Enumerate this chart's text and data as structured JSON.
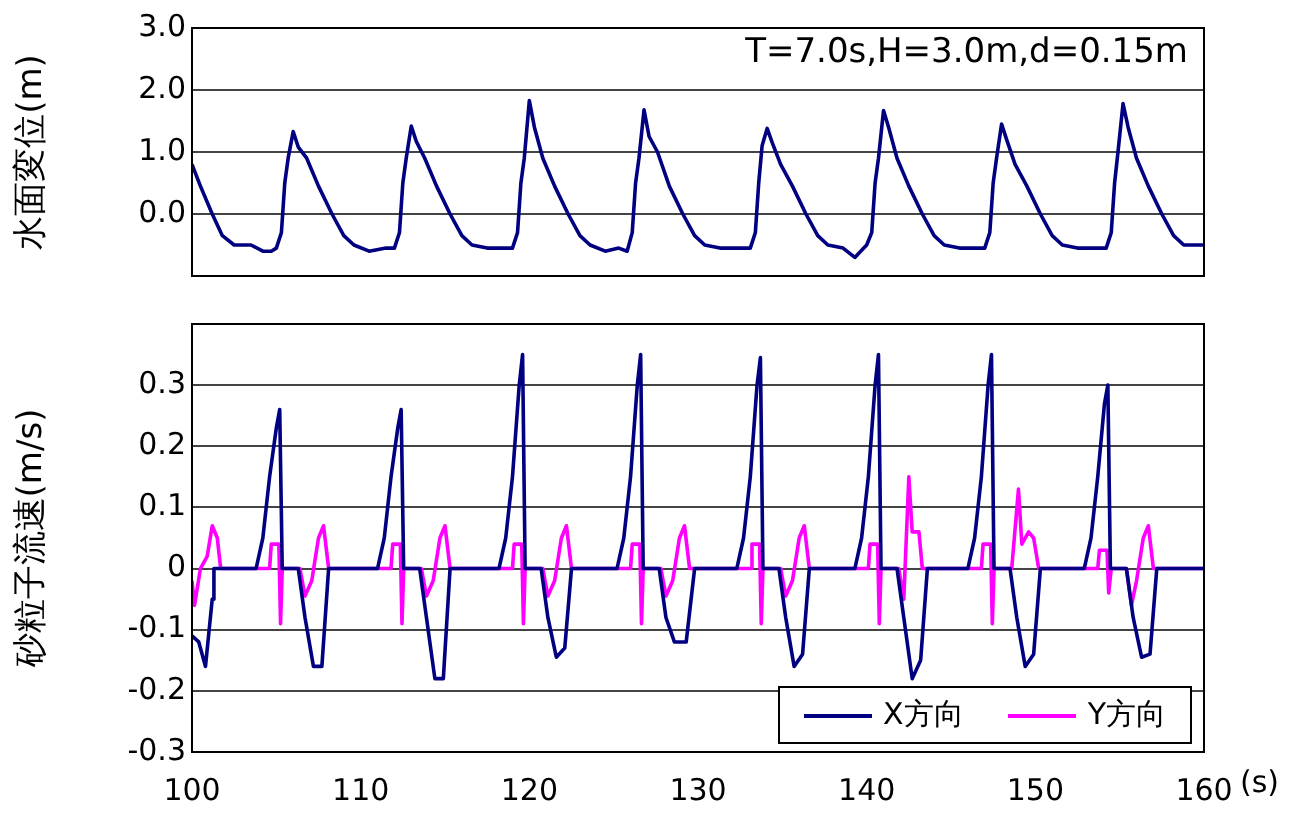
{
  "chart_data": [
    {
      "type": "line",
      "ylabel": "水面変位(m)",
      "annotations": [
        "T=7.0s,H=3.0m,d=0.15m"
      ],
      "xlim": [
        100,
        160
      ],
      "ylim": [
        -1,
        3
      ],
      "yticks": [
        {
          "value": 0,
          "label": "0.0"
        },
        {
          "value": 1,
          "label": "1.0"
        },
        {
          "value": 2,
          "label": "2.0"
        },
        {
          "value": 3,
          "label": "3.0"
        }
      ],
      "grid": "y",
      "tick_labels": "y",
      "series": [
        {
          "color": "#000080",
          "x": [
            100,
            100.5,
            101.2,
            101.8,
            102.5,
            103.5,
            104.2,
            104.7,
            105,
            105.3,
            105.5,
            105.7,
            106,
            106.3,
            106.8,
            107.5,
            108.3,
            109,
            109.6,
            110.5,
            111.5,
            112,
            112.3,
            112.5,
            112.7,
            113,
            113.3,
            113.8,
            114.5,
            115.3,
            116,
            116.6,
            117.5,
            118.5,
            119,
            119.3,
            119.5,
            119.7,
            120,
            120.3,
            120.8,
            121.5,
            122.3,
            123,
            123.6,
            124.5,
            125.3,
            125.8,
            126.1,
            126.3,
            126.5,
            126.8,
            127.1,
            127.6,
            128.3,
            129.1,
            129.8,
            130.4,
            131.3,
            132.3,
            133.1,
            133.4,
            133.6,
            133.8,
            134.1,
            134.4,
            134.9,
            135.6,
            136.4,
            137.1,
            137.7,
            138.6,
            139.3,
            140,
            140.3,
            140.5,
            140.7,
            141,
            141.3,
            141.8,
            142.5,
            143.3,
            144,
            144.6,
            145.5,
            146.5,
            147,
            147.3,
            147.5,
            147.7,
            148,
            148.3,
            148.8,
            149.5,
            150.3,
            151,
            151.6,
            152.5,
            153.5,
            154.2,
            154.5,
            154.7,
            154.9,
            155.2,
            155.5,
            156,
            156.7,
            157.5,
            158.2,
            158.8,
            159.5,
            160
          ],
          "values": [
            0.8,
            0.45,
            0,
            -0.35,
            -0.5,
            -0.5,
            -0.6,
            -0.6,
            -0.55,
            -0.3,
            0.5,
            0.9,
            1.33,
            1.08,
            0.9,
            0.45,
            0,
            -0.35,
            -0.5,
            -0.6,
            -0.55,
            -0.55,
            -0.3,
            0.5,
            0.9,
            1.42,
            1.17,
            0.9,
            0.45,
            0,
            -0.35,
            -0.5,
            -0.55,
            -0.55,
            -0.55,
            -0.3,
            0.5,
            0.9,
            1.83,
            1.4,
            0.9,
            0.45,
            0,
            -0.35,
            -0.5,
            -0.6,
            -0.55,
            -0.6,
            -0.3,
            0.5,
            0.9,
            1.68,
            1.25,
            1,
            0.45,
            0,
            -0.35,
            -0.5,
            -0.55,
            -0.55,
            -0.55,
            -0.3,
            0.5,
            1.1,
            1.38,
            1.15,
            0.8,
            0.45,
            0,
            -0.35,
            -0.5,
            -0.55,
            -0.7,
            -0.5,
            -0.3,
            0.5,
            0.9,
            1.67,
            1.4,
            0.9,
            0.45,
            0,
            -0.35,
            -0.5,
            -0.55,
            -0.55,
            -0.55,
            -0.3,
            0.5,
            0.9,
            1.45,
            1.2,
            0.8,
            0.45,
            0,
            -0.35,
            -0.5,
            -0.55,
            -0.55,
            -0.55,
            -0.3,
            0.5,
            1,
            1.78,
            1.4,
            0.9,
            0.45,
            0,
            -0.35,
            -0.5,
            -0.5,
            -0.5
          ]
        }
      ]
    },
    {
      "type": "line",
      "ylabel": "砂粒子流速(m/s)",
      "xlabel": "(s)",
      "xlim": [
        100,
        160
      ],
      "xticks": [
        100,
        110,
        120,
        130,
        140,
        150,
        160
      ],
      "ylim": [
        -0.3,
        0.4
      ],
      "yticks": [
        -0.3,
        -0.2,
        -0.1,
        0,
        0.1,
        0.2,
        0.3
      ],
      "grid": "y",
      "legend": "bottom right",
      "series": [
        {
          "name": "X方向",
          "color": "#000080",
          "x": [
            100,
            100.4,
            100.8,
            101.2,
            101.3,
            103.8,
            104.2,
            104.6,
            105,
            105.2,
            105.35,
            106.3,
            106.7,
            107.2,
            107.7,
            108.1,
            111,
            111.4,
            111.8,
            112.2,
            112.4,
            112.55,
            113.5,
            113.9,
            114.4,
            114.9,
            115.3,
            118.2,
            118.6,
            119,
            119.4,
            119.6,
            119.75,
            120.7,
            121.1,
            121.6,
            122.1,
            122.5,
            125.2,
            125.6,
            126,
            126.4,
            126.6,
            126.75,
            127.7,
            128.1,
            128.6,
            129.3,
            129.8,
            132.3,
            132.7,
            133.1,
            133.5,
            133.7,
            133.85,
            134.8,
            135.2,
            135.7,
            136.2,
            136.6,
            139.3,
            139.7,
            140.1,
            140.5,
            140.7,
            140.85,
            141.8,
            142.2,
            142.7,
            143.2,
            143.6,
            146,
            146.4,
            146.8,
            147.2,
            147.4,
            147.55,
            148.5,
            148.9,
            149.4,
            149.9,
            150.3,
            152.9,
            153.3,
            153.7,
            154.1,
            154.3,
            154.45,
            155.4,
            155.8,
            156.3,
            156.8,
            157.2,
            160
          ],
          "values": [
            -0.11,
            -0.12,
            -0.16,
            -0.05,
            0,
            0,
            0.05,
            0.15,
            0.23,
            0.26,
            0,
            0,
            -0.08,
            -0.16,
            -0.16,
            0,
            0,
            0.05,
            0.15,
            0.23,
            0.26,
            0,
            0,
            -0.08,
            -0.18,
            -0.18,
            0,
            0,
            0.05,
            0.15,
            0.3,
            0.35,
            0,
            0,
            -0.08,
            -0.145,
            -0.13,
            0,
            0,
            0.05,
            0.15,
            0.3,
            0.35,
            0,
            0,
            -0.08,
            -0.12,
            -0.12,
            0,
            0,
            0.05,
            0.15,
            0.3,
            0.345,
            0,
            0,
            -0.08,
            -0.16,
            -0.14,
            0,
            0,
            0.05,
            0.15,
            0.3,
            0.35,
            0,
            0,
            -0.08,
            -0.18,
            -0.15,
            0,
            0,
            0.05,
            0.15,
            0.3,
            0.35,
            0,
            0,
            -0.08,
            -0.16,
            -0.14,
            0,
            0,
            0.05,
            0.15,
            0.27,
            0.3,
            0,
            0,
            -0.08,
            -0.145,
            -0.14,
            0,
            0
          ]
        },
        {
          "name": "Y方向",
          "color": "#ff00ff",
          "x": [
            100,
            100.15,
            100.5,
            100.9,
            101.2,
            101.5,
            101.7,
            104.6,
            104.7,
            105.15,
            105.25,
            105.35,
            106.4,
            106.7,
            107.1,
            107.5,
            107.8,
            108.1,
            111.8,
            111.9,
            112.35,
            112.45,
            112.55,
            113.6,
            113.9,
            114.3,
            114.7,
            115,
            115.3,
            119,
            119.1,
            119.55,
            119.65,
            119.75,
            120.8,
            121.1,
            121.5,
            121.9,
            122.2,
            122.5,
            126,
            126.1,
            126.55,
            126.65,
            126.75,
            127.8,
            128.1,
            128.5,
            128.9,
            129.2,
            129.5,
            133.1,
            133.2,
            133.65,
            133.75,
            133.85,
            134.9,
            135.2,
            135.6,
            136,
            136.3,
            136.6,
            140.1,
            140.2,
            140.65,
            140.75,
            140.85,
            141.9,
            142.2,
            142.5,
            142.7,
            143.1,
            143.3,
            146.8,
            146.9,
            147.35,
            147.45,
            147.55,
            148.6,
            149,
            149.2,
            149.6,
            149.9,
            150.2,
            153.7,
            153.8,
            154.25,
            154.35,
            154.5,
            155.4,
            155.7,
            156,
            156.4,
            156.7,
            157,
            160
          ],
          "values": [
            -0.02,
            -0.06,
            0,
            0.02,
            0.07,
            0.05,
            0,
            0,
            0.04,
            0.04,
            -0.09,
            0,
            0,
            -0.045,
            -0.02,
            0.05,
            0.07,
            0,
            0,
            0.04,
            0.04,
            -0.09,
            0,
            0,
            -0.045,
            -0.02,
            0.05,
            0.07,
            0,
            0,
            0.04,
            0.04,
            -0.09,
            0,
            0,
            -0.045,
            -0.02,
            0.05,
            0.07,
            0,
            0,
            0.04,
            0.04,
            -0.09,
            0,
            0,
            -0.045,
            -0.02,
            0.05,
            0.07,
            0,
            0,
            0.04,
            0.04,
            -0.09,
            0,
            0,
            -0.045,
            -0.02,
            0.05,
            0.07,
            0,
            0,
            0.04,
            0.04,
            -0.09,
            0,
            0,
            -0.05,
            0.15,
            0.06,
            0.06,
            0,
            0,
            0.04,
            0.04,
            -0.09,
            0,
            0,
            0.13,
            0.04,
            0.06,
            0.05,
            0,
            0,
            0.03,
            0.03,
            -0.04,
            0,
            0,
            -0.06,
            -0.02,
            0.05,
            0.07,
            0,
            0
          ]
        }
      ]
    }
  ]
}
